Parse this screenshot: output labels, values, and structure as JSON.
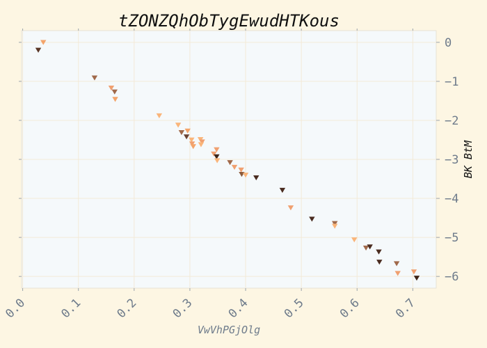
{
  "chart_data": {
    "type": "scatter",
    "title": "tZONZQhObTygEwudHTKous",
    "xlabel": "VwVhPGjOlg",
    "ylabel": "BK BtM",
    "xlim": [
      -0.002,
      0.742
    ],
    "ylim": [
      -6.3,
      0.3
    ],
    "x_ticks": [
      0.0,
      0.1,
      0.2,
      0.3,
      0.4,
      0.5,
      0.6,
      0.7
    ],
    "x_tick_labels": [
      "0.0",
      "0.1",
      "0.2",
      "0.3",
      "0.4",
      "0.5",
      "0.6",
      "0.7"
    ],
    "y_ticks": [
      0,
      -1,
      -2,
      -3,
      -4,
      -5,
      -6
    ],
    "y_tick_labels": [
      "0",
      "−1",
      "−2",
      "−3",
      "−4",
      "−5",
      "−6"
    ],
    "grid": true,
    "marker": "triangle-down",
    "colors": {
      "background": "#fdf6e3",
      "plot_background": "#f5f9fb",
      "grid": "#f3ead8",
      "axis_text": "#6e7b8b",
      "title": "#111111"
    },
    "points": [
      {
        "x": 0.037,
        "y": 0.0,
        "color": "#f4a46a"
      },
      {
        "x": 0.028,
        "y": -0.2,
        "color": "#5a3626"
      },
      {
        "x": 0.129,
        "y": -0.91,
        "color": "#a0694a"
      },
      {
        "x": 0.159,
        "y": -1.17,
        "color": "#f0a070"
      },
      {
        "x": 0.165,
        "y": -1.27,
        "color": "#a0694a"
      },
      {
        "x": 0.166,
        "y": -1.46,
        "color": "#f4a46a"
      },
      {
        "x": 0.245,
        "y": -1.88,
        "color": "#fab57a"
      },
      {
        "x": 0.279,
        "y": -2.12,
        "color": "#fab57a"
      },
      {
        "x": 0.285,
        "y": -2.31,
        "color": "#a0694a"
      },
      {
        "x": 0.296,
        "y": -2.27,
        "color": "#f4a46a"
      },
      {
        "x": 0.294,
        "y": -2.42,
        "color": "#6b4332"
      },
      {
        "x": 0.303,
        "y": -2.5,
        "color": "#fab57a"
      },
      {
        "x": 0.304,
        "y": -2.6,
        "color": "#f0a070"
      },
      {
        "x": 0.306,
        "y": -2.67,
        "color": "#f4a46a"
      },
      {
        "x": 0.319,
        "y": -2.49,
        "color": "#fab57a"
      },
      {
        "x": 0.322,
        "y": -2.55,
        "color": "#f0a070"
      },
      {
        "x": 0.32,
        "y": -2.62,
        "color": "#fab57a"
      },
      {
        "x": 0.343,
        "y": -2.86,
        "color": "#f0a070"
      },
      {
        "x": 0.348,
        "y": -2.75,
        "color": "#f0a070"
      },
      {
        "x": 0.348,
        "y": -2.93,
        "color": "#3d2418"
      },
      {
        "x": 0.349,
        "y": -3.03,
        "color": "#fab57a"
      },
      {
        "x": 0.372,
        "y": -3.08,
        "color": "#a0694a"
      },
      {
        "x": 0.38,
        "y": -3.2,
        "color": "#f0a070"
      },
      {
        "x": 0.392,
        "y": -3.27,
        "color": "#f0a070"
      },
      {
        "x": 0.393,
        "y": -3.38,
        "color": "#8b5a3c"
      },
      {
        "x": 0.4,
        "y": -3.4,
        "color": "#fab57a"
      },
      {
        "x": 0.419,
        "y": -3.47,
        "color": "#4a2c20"
      },
      {
        "x": 0.466,
        "y": -3.79,
        "color": "#4a2c20"
      },
      {
        "x": 0.481,
        "y": -4.24,
        "color": "#f0a070"
      },
      {
        "x": 0.519,
        "y": -4.53,
        "color": "#4a2c20"
      },
      {
        "x": 0.56,
        "y": -4.64,
        "color": "#a0694a"
      },
      {
        "x": 0.56,
        "y": -4.71,
        "color": "#fab57a"
      },
      {
        "x": 0.595,
        "y": -5.06,
        "color": "#fab57a"
      },
      {
        "x": 0.616,
        "y": -5.27,
        "color": "#a0694a"
      },
      {
        "x": 0.623,
        "y": -5.24,
        "color": "#4a2c20"
      },
      {
        "x": 0.639,
        "y": -5.37,
        "color": "#4a2c20"
      },
      {
        "x": 0.64,
        "y": -5.63,
        "color": "#4a2c20"
      },
      {
        "x": 0.671,
        "y": -5.67,
        "color": "#a0694a"
      },
      {
        "x": 0.673,
        "y": -5.92,
        "color": "#f0a070"
      },
      {
        "x": 0.702,
        "y": -5.88,
        "color": "#f0a070"
      },
      {
        "x": 0.707,
        "y": -6.04,
        "color": "#3d2418"
      }
    ]
  }
}
